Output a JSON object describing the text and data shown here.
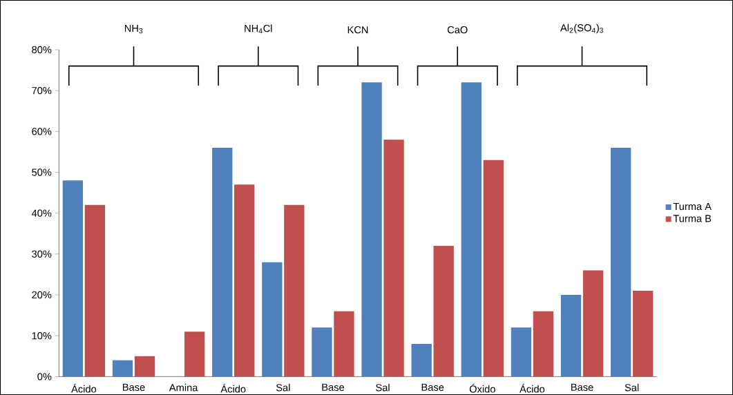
{
  "chart_data": {
    "type": "bar",
    "categories": [
      "Ácido",
      "Base",
      "Amina",
      "Ácido",
      "Sal",
      "Base",
      "Sal",
      "Base",
      "Óxido",
      "Ácido",
      "Base",
      "Sal"
    ],
    "series": [
      {
        "name": "Turma A",
        "color": "#4f81bd",
        "values": [
          48,
          4,
          0,
          56,
          28,
          12,
          72,
          8,
          72,
          12,
          20,
          56
        ]
      },
      {
        "name": "Turma B",
        "color": "#c0504d",
        "values": [
          42,
          5,
          11,
          47,
          42,
          16,
          58,
          32,
          53,
          16,
          26,
          21
        ]
      }
    ],
    "ylim": [
      0,
      80
    ],
    "yticks": [
      {
        "value": 0,
        "label": "0%"
      },
      {
        "value": 10,
        "label": "10%"
      },
      {
        "value": 20,
        "label": "20%"
      },
      {
        "value": 30,
        "label": "30%"
      },
      {
        "value": 40,
        "label": "40%"
      },
      {
        "value": 50,
        "label": "50%"
      },
      {
        "value": 60,
        "label": "60%"
      },
      {
        "value": 70,
        "label": "70%"
      },
      {
        "value": 80,
        "label": "80%"
      }
    ],
    "annotations": [
      "NH$_{3}$",
      "NH$_{4}$Cl",
      "KCN",
      "CaO",
      "Al$_{2}$(SO$_{4}$)$_{3}$"
    ],
    "legend": "right",
    "grid": false
  }
}
